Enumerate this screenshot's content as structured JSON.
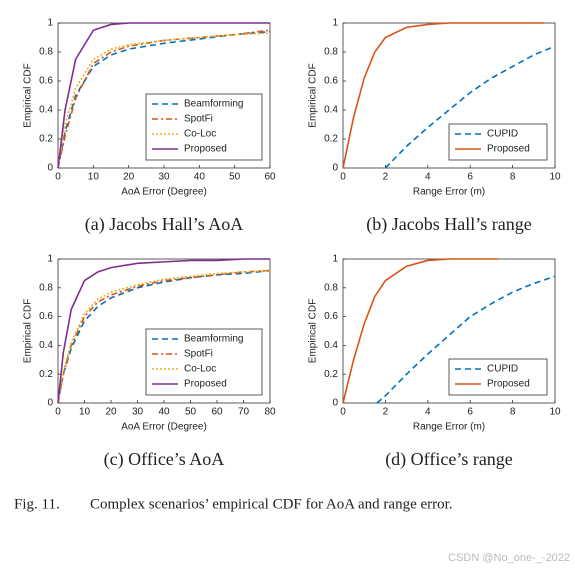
{
  "chart_data": [
    {
      "type": "line",
      "xlabel": "AoA Error (Degree)",
      "ylabel": "Empirical CDF",
      "caption": "(a) Jacobs Hall’s AoA",
      "xlim": [
        0,
        60
      ],
      "xticks": [
        0,
        10,
        20,
        30,
        40,
        50,
        60
      ],
      "ylim": [
        0,
        1
      ],
      "yticks": [
        0,
        0.2,
        0.4,
        0.6,
        0.8,
        1
      ],
      "legend": "lower right",
      "series": [
        {
          "name": "Beamforming",
          "color": "#0072BD",
          "style": "dashed",
          "x": [
            0,
            2,
            5,
            10,
            15,
            20,
            30,
            40,
            50,
            60
          ],
          "values": [
            0,
            0.25,
            0.5,
            0.7,
            0.78,
            0.82,
            0.86,
            0.89,
            0.92,
            0.94
          ]
        },
        {
          "name": "SpotFi",
          "color": "#D95319",
          "style": "dashdot",
          "x": [
            0,
            2,
            5,
            10,
            15,
            20,
            30,
            40,
            50,
            60
          ],
          "values": [
            0,
            0.22,
            0.48,
            0.72,
            0.8,
            0.84,
            0.88,
            0.9,
            0.92,
            0.95
          ]
        },
        {
          "name": "Co-Loc",
          "color": "#EDB120",
          "style": "dotted",
          "x": [
            0,
            2,
            5,
            10,
            15,
            20,
            30,
            40,
            50,
            60
          ],
          "values": [
            0,
            0.3,
            0.55,
            0.75,
            0.82,
            0.85,
            0.88,
            0.9,
            0.92,
            0.93
          ]
        },
        {
          "name": "Proposed",
          "color": "#7E2F8E",
          "style": "solid",
          "x": [
            0,
            2,
            5,
            10,
            15,
            20,
            30,
            40,
            50,
            60
          ],
          "values": [
            0,
            0.4,
            0.75,
            0.95,
            0.99,
            1,
            1,
            1,
            1,
            1
          ]
        }
      ]
    },
    {
      "type": "line",
      "xlabel": "Range Error (m)",
      "ylabel": "Empirical CDF",
      "caption": "(b) Jacobs Hall’s range",
      "xlim": [
        0,
        10
      ],
      "xticks": [
        0,
        2,
        4,
        6,
        8,
        10
      ],
      "ylim": [
        0,
        1
      ],
      "yticks": [
        0,
        0.2,
        0.4,
        0.6,
        0.8,
        1
      ],
      "legend": "lower right",
      "series": [
        {
          "name": "CUPID",
          "color": "#0072BD",
          "style": "dashed",
          "x": [
            2,
            3,
            4,
            5,
            6,
            7,
            8,
            9,
            10
          ],
          "values": [
            0,
            0.15,
            0.28,
            0.4,
            0.52,
            0.62,
            0.7,
            0.78,
            0.84
          ]
        },
        {
          "name": "Proposed",
          "color": "#D95319",
          "style": "solid",
          "x": [
            0,
            0.5,
            1,
            1.5,
            2,
            3,
            4,
            5,
            6,
            7,
            8,
            9.5
          ],
          "values": [
            0,
            0.35,
            0.62,
            0.8,
            0.9,
            0.97,
            0.99,
            1,
            1,
            1,
            1,
            1
          ]
        }
      ]
    },
    {
      "type": "line",
      "xlabel": "AoA Error (Degree)",
      "ylabel": "Empirical CDF",
      "caption": "(c) Office’s AoA",
      "xlim": [
        0,
        80
      ],
      "xticks": [
        0,
        10,
        20,
        30,
        40,
        50,
        60,
        70,
        80
      ],
      "ylim": [
        0,
        1
      ],
      "yticks": [
        0,
        0.2,
        0.4,
        0.6,
        0.8,
        1
      ],
      "legend": "lower right",
      "series": [
        {
          "name": "Beamforming",
          "color": "#0072BD",
          "style": "dashed",
          "x": [
            0,
            2,
            5,
            10,
            15,
            20,
            30,
            40,
            50,
            60,
            70,
            80
          ],
          "values": [
            0,
            0.2,
            0.38,
            0.57,
            0.67,
            0.73,
            0.8,
            0.84,
            0.87,
            0.89,
            0.9,
            0.92
          ]
        },
        {
          "name": "SpotFi",
          "color": "#D95319",
          "style": "dashdot",
          "x": [
            0,
            2,
            5,
            10,
            15,
            20,
            30,
            40,
            50,
            60,
            70,
            80
          ],
          "values": [
            0,
            0.2,
            0.4,
            0.6,
            0.7,
            0.75,
            0.81,
            0.85,
            0.87,
            0.89,
            0.91,
            0.92
          ]
        },
        {
          "name": "Co-Loc",
          "color": "#EDB120",
          "style": "dotted",
          "x": [
            0,
            2,
            5,
            10,
            15,
            20,
            30,
            40,
            50,
            60,
            70,
            80
          ],
          "values": [
            0,
            0.22,
            0.42,
            0.62,
            0.72,
            0.77,
            0.82,
            0.86,
            0.88,
            0.9,
            0.91,
            0.92
          ]
        },
        {
          "name": "Proposed",
          "color": "#7E2F8E",
          "style": "solid",
          "x": [
            0,
            2,
            5,
            10,
            15,
            20,
            30,
            40,
            50,
            60,
            70,
            80
          ],
          "values": [
            0,
            0.35,
            0.65,
            0.85,
            0.91,
            0.94,
            0.97,
            0.98,
            0.99,
            0.99,
            1,
            1
          ]
        }
      ]
    },
    {
      "type": "line",
      "xlabel": "Range Error (m)",
      "ylabel": "Empirical CDF",
      "caption": "(d) Office’s range",
      "xlim": [
        0,
        10
      ],
      "xticks": [
        0,
        2,
        4,
        6,
        8,
        10
      ],
      "ylim": [
        0,
        1
      ],
      "yticks": [
        0,
        0.2,
        0.4,
        0.6,
        0.8,
        1
      ],
      "legend": "lower right",
      "series": [
        {
          "name": "CUPID",
          "color": "#0072BD",
          "style": "dashed",
          "x": [
            1.6,
            2,
            3,
            4,
            5,
            6,
            7,
            8,
            9,
            10
          ],
          "values": [
            0,
            0.05,
            0.2,
            0.34,
            0.47,
            0.6,
            0.69,
            0.77,
            0.83,
            0.88
          ]
        },
        {
          "name": "Proposed",
          "color": "#D95319",
          "style": "solid",
          "x": [
            0,
            0.5,
            1,
            1.5,
            2,
            3,
            4,
            5,
            6,
            7.3
          ],
          "values": [
            0,
            0.3,
            0.55,
            0.74,
            0.85,
            0.95,
            0.99,
            1,
            1,
            1
          ]
        }
      ]
    }
  ],
  "figure_caption": {
    "label": "Fig. 11.",
    "text": "Complex scenarios’ empirical CDF for AoA and range error."
  },
  "watermark": "CSDN @No_one-_-2022"
}
